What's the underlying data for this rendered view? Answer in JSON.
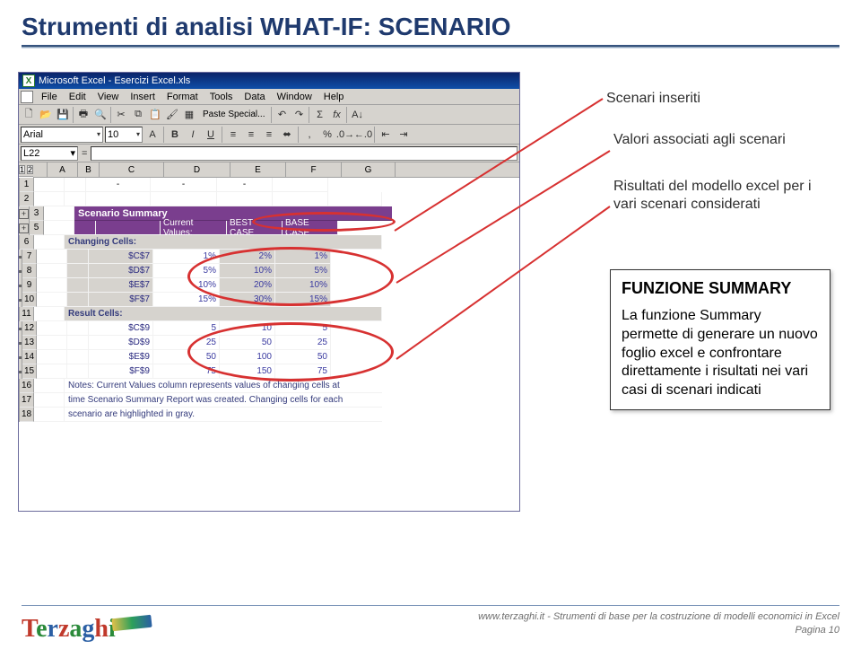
{
  "slide": {
    "title": "Strumenti di analisi WHAT-IF: SCENARIO"
  },
  "excel": {
    "title": "Microsoft Excel - Esercizi Excel.xls",
    "menus": [
      "File",
      "Edit",
      "View",
      "Insert",
      "Format",
      "Tools",
      "Data",
      "Window",
      "Help"
    ],
    "paste_special": "Paste Special...",
    "font_name": "Arial",
    "font_size": "10",
    "namebox": "L22",
    "outline_levels": [
      "1",
      "2"
    ],
    "toprow_dash": "-",
    "columns": [
      "",
      "A",
      "B",
      "C",
      "D",
      "E",
      "F",
      "G"
    ],
    "summary_title": "Scenario Summary",
    "summary_headers": [
      "Current Values:",
      "BEST CASE",
      "BASE CASE"
    ],
    "changing_label": "Changing Cells:",
    "result_label": "Result Cells:",
    "changing": [
      {
        "cell": "$C$7",
        "values": [
          "1%",
          "2%",
          "1%"
        ]
      },
      {
        "cell": "$D$7",
        "values": [
          "5%",
          "10%",
          "5%"
        ]
      },
      {
        "cell": "$E$7",
        "values": [
          "10%",
          "20%",
          "10%"
        ]
      },
      {
        "cell": "$F$7",
        "values": [
          "15%",
          "30%",
          "15%"
        ]
      }
    ],
    "results": [
      {
        "cell": "$C$9",
        "values": [
          "5",
          "10",
          "5"
        ]
      },
      {
        "cell": "$D$9",
        "values": [
          "25",
          "50",
          "25"
        ]
      },
      {
        "cell": "$E$9",
        "values": [
          "50",
          "100",
          "50"
        ]
      },
      {
        "cell": "$F$9",
        "values": [
          "75",
          "150",
          "75"
        ]
      }
    ],
    "notes": [
      "Notes:  Current Values column represents values of changing cells at",
      "time Scenario Summary Report was created.  Changing cells for each",
      "scenario are highlighted in gray."
    ],
    "row_nums": [
      "1",
      "2",
      "3",
      "5",
      "6",
      "7",
      "8",
      "9",
      "10",
      "11",
      "12",
      "13",
      "14",
      "15",
      "16",
      "17",
      "18"
    ]
  },
  "notes": {
    "a": "Scenari inseriti",
    "b": "Valori associati agli scenari",
    "c": "Risultati del modello excel per i vari scenari considerati"
  },
  "funcbox": {
    "title": "FUNZIONE SUMMARY",
    "body": "La funzione Summary permette di generare un nuovo foglio excel e confrontare direttamente i risultati nei vari casi di scenari indicati"
  },
  "footer": {
    "line1": "www.terzaghi.it - Strumenti di base per la costruzione di modelli economici in Excel",
    "line2": "Pagina 10"
  },
  "colors": {
    "title": "#1f3a6e",
    "purple": "#7a3e8e",
    "red": "#d73131"
  }
}
